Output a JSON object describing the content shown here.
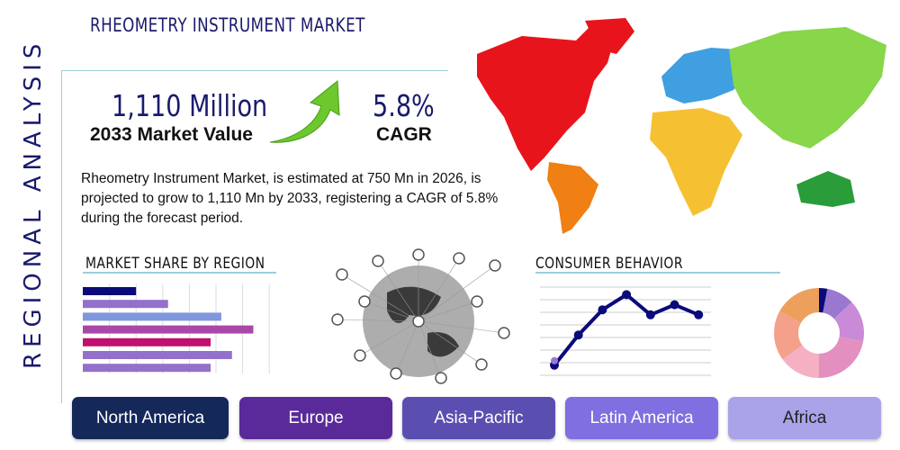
{
  "header": {
    "title": "RHEOMETRY INSTRUMENT MARKET",
    "side_label": "REGIONAL ANALYSIS"
  },
  "stats": {
    "market_value": "1,110 Million",
    "market_value_label": "2033 Market Value",
    "cagr": "5.8%",
    "cagr_label": "CAGR"
  },
  "description": "Rheometry Instrument Market, is estimated at 750 Mn in 2026, is projected to grow to 1,110 Mn by 2033, registering a CAGR of 5.8% during the forecast period.",
  "sections": {
    "market_share": "MARKET SHARE BY REGION",
    "consumer": "CONSUMER BEHAVIOR"
  },
  "regions": [
    {
      "label": "North America",
      "color": "#14285a"
    },
    {
      "label": "Europe",
      "color": "#5b2a9a"
    },
    {
      "label": "Asia-Pacific",
      "color": "#5a4fb0"
    },
    {
      "label": "Latin America",
      "color": "#7f6fe0"
    },
    {
      "label": "Africa",
      "color": "#a9a3ea"
    }
  ],
  "chart_data": [
    {
      "type": "bar",
      "orientation": "horizontal",
      "values": [
        2,
        3.2,
        5.2,
        6.4,
        4.8,
        5.6,
        4.8
      ],
      "colors": [
        "#0a0a7a",
        "#9370cc",
        "#7f97dd",
        "#a948a8",
        "#c2106e",
        "#9370cc",
        "#9370cc"
      ],
      "xlim": [
        0,
        8
      ],
      "grid": true
    },
    {
      "type": "line",
      "values": [
        0.8,
        3.2,
        5.2,
        6.4,
        4.8,
        5.6,
        4.8
      ],
      "color": "#0a0a7a",
      "ylim": [
        0,
        7
      ],
      "grid": true
    },
    {
      "type": "pie",
      "donut": true,
      "values": [
        3,
        10,
        15,
        22,
        15,
        18,
        17
      ],
      "colors": [
        "#0a0a7a",
        "#9a78d0",
        "#c98ad8",
        "#e38fbf",
        "#f5b0c4",
        "#f4a08a",
        "#eda05c"
      ]
    }
  ],
  "map_colors": {
    "north_america": "#e8141c",
    "south_america": "#f07f14",
    "europe": "#3f9fe0",
    "asia": "#88d64a",
    "africa": "#f5c132",
    "oceania": "#2a9c3a",
    "greenland": "#e8141c"
  }
}
